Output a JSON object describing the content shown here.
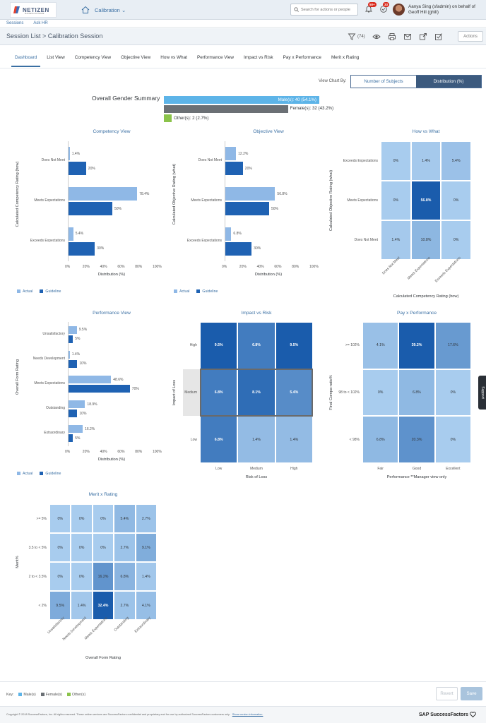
{
  "app": {
    "logo_text": "NETIZEN",
    "logo_sub": "BUSINESS SOFTWARE",
    "module": "Calibration",
    "search_placeholder": "Search for actions or people",
    "notif_count_1": "50+",
    "notif_count_2": "33",
    "user_line": "Aanya Sing (sfadmin) on behalf of Geoff Hill (ghill)"
  },
  "subnav": [
    "Sessions",
    "Ask HR"
  ],
  "titlebar": {
    "title": "Session List > Calibration Session",
    "filter_count": "(74)",
    "actions_label": "Actions"
  },
  "tabs": [
    "Dashboard",
    "List View",
    "Competency View",
    "Objective View",
    "How vs What",
    "Performance View",
    "Impact vs Risk",
    "Pay x Performance",
    "Merit x Rating"
  ],
  "view_by": {
    "label": "View Chart By:",
    "options": [
      "Number of Subjects",
      "Distribution (%)"
    ],
    "selected": "Distribution (%)"
  },
  "gender": {
    "title": "Overall Gender Summary",
    "male": "Male(s): 40 (54.1%)",
    "female": "Female(s): 32 (43.2%)",
    "other": "Other(s): 2 (2.7%)",
    "male_pct": 54.1,
    "female_pct": 43.2,
    "other_pct": 2.7
  },
  "legend": {
    "actual": "Actual",
    "guideline": "Guideline"
  },
  "colors": {
    "actual": "#8fb8e6",
    "guideline": "#1f62b3",
    "male": "#5db4e8",
    "female": "#6b7075",
    "other": "#8bc34a",
    "accent": "#3a6fa3"
  },
  "chart_data": [
    {
      "id": "competency",
      "type": "bar",
      "title": "Competency View",
      "ylabel": "Calculated Competency Rating (how)",
      "xlabel": "Distribution (%)",
      "xticks": [
        "0%",
        "20%",
        "40%",
        "60%",
        "80%",
        "100%"
      ],
      "xlim": [
        0,
        100
      ],
      "categories": [
        "Does Not Meet",
        "Meets Expectations",
        "Exceeds Expectations"
      ],
      "series": [
        {
          "name": "Actual",
          "values": [
            1.4,
            78.4,
            5.4
          ],
          "labels": [
            "1.4%",
            "78.4%",
            "5.4%"
          ]
        },
        {
          "name": "Guideline",
          "values": [
            20,
            50,
            30
          ],
          "labels": [
            "20%",
            "50%",
            "30%"
          ]
        }
      ]
    },
    {
      "id": "objective",
      "type": "bar",
      "title": "Objective View",
      "ylabel": "Calculated Objective Rating (what)",
      "xlabel": "Distribution (%)",
      "xticks": [
        "0%",
        "20%",
        "40%",
        "60%",
        "80%",
        "100%"
      ],
      "xlim": [
        0,
        100
      ],
      "categories": [
        "Does Not Meet",
        "Meets Expectations",
        "Exceeds Expectations"
      ],
      "series": [
        {
          "name": "Actual",
          "values": [
            12.2,
            56.8,
            6.8
          ],
          "labels": [
            "12.2%",
            "56.8%",
            "6.8%"
          ]
        },
        {
          "name": "Guideline",
          "values": [
            20,
            50,
            30
          ],
          "labels": [
            "20%",
            "50%",
            "30%"
          ]
        }
      ]
    },
    {
      "id": "how_vs_what",
      "type": "heatmap",
      "title": "How vs What",
      "ylabel": "Calculated Objective Rating (what)",
      "xlabel": "Calculated Competency Rating (how)",
      "rows": [
        "Exceeds Expectations",
        "Meets Expectations",
        "Does Not Meet"
      ],
      "cols": [
        "Does Not Meet",
        "Meets Expectations",
        "Exceeds Expectations"
      ],
      "values": [
        [
          0,
          1.4,
          5.4
        ],
        [
          0,
          56.8,
          0
        ],
        [
          1.4,
          10.8,
          0
        ]
      ],
      "labels": [
        [
          "0%",
          "1.4%",
          "5.4%"
        ],
        [
          "0%",
          "56.8%",
          "0%"
        ],
        [
          "1.4%",
          "10.8%",
          "0%"
        ]
      ]
    },
    {
      "id": "performance",
      "type": "bar",
      "title": "Performance View",
      "ylabel": "Overall Form Rating",
      "xlabel": "Distribution (%)",
      "xticks": [
        "0%",
        "20%",
        "40%",
        "60%",
        "80%",
        "100%"
      ],
      "xlim": [
        0,
        100
      ],
      "categories": [
        "Unsatisfactory",
        "Needs Development",
        "Meets Expectations",
        "Outstanding",
        "Extraordinary"
      ],
      "series": [
        {
          "name": "Actual",
          "values": [
            9.5,
            1.4,
            48.6,
            18.9,
            16.2
          ],
          "labels": [
            "9.5%",
            "1.4%",
            "48.6%",
            "18.9%",
            "16.2%"
          ]
        },
        {
          "name": "Guideline",
          "values": [
            5,
            10,
            70,
            10,
            5
          ],
          "labels": [
            "5%",
            "10%",
            "70%",
            "10%",
            "5%"
          ]
        }
      ]
    },
    {
      "id": "impact_vs_risk",
      "type": "heatmap",
      "title": "Impact vs Risk",
      "ylabel": "Impact of Loss",
      "xlabel": "Risk of Loss",
      "rows": [
        "High",
        "Medium",
        "Low"
      ],
      "cols": [
        "Low",
        "Medium",
        "High"
      ],
      "values": [
        [
          9.5,
          6.8,
          9.5
        ],
        [
          6.8,
          8.1,
          5.4
        ],
        [
          6.8,
          1.4,
          1.4
        ]
      ],
      "labels": [
        [
          "9.5%",
          "6.8%",
          "9.5%"
        ],
        [
          "6.8%",
          "8.1%",
          "5.4%"
        ],
        [
          "6.8%",
          "1.4%",
          "1.4%"
        ]
      ]
    },
    {
      "id": "pay_x_performance",
      "type": "heatmap",
      "title": "Pay x Performance",
      "ylabel": "Final Compa-ratio%",
      "xlabel": "Performance **Manager view only",
      "rows": [
        ">= 102%",
        "98 to < 102%",
        "< 98%"
      ],
      "cols": [
        "Fair",
        "Good",
        "Excellent"
      ],
      "values": [
        [
          4.1,
          39.2,
          17.6
        ],
        [
          0,
          6.8,
          0
        ],
        [
          6.8,
          20.3,
          0
        ]
      ],
      "labels": [
        [
          "4.1%",
          "39.2%",
          "17.6%"
        ],
        [
          "0%",
          "6.8%",
          "0%"
        ],
        [
          "6.8%",
          "20.3%",
          "0%"
        ]
      ]
    },
    {
      "id": "merit_x_rating",
      "type": "heatmap",
      "title": "Merit x Rating",
      "ylabel": "Merit%",
      "xlabel": "Overall Form Rating",
      "rows": [
        ">= 5%",
        "3.5 to < 5%",
        "2 to < 3.5%",
        "< 2%"
      ],
      "cols": [
        "Unsatisfactory",
        "Needs Development",
        "Meets Expectations",
        "Outstanding",
        "Extraordinary"
      ],
      "values": [
        [
          0,
          0,
          0,
          5.4,
          2.7
        ],
        [
          0,
          0,
          0,
          2.7,
          9.1
        ],
        [
          0,
          0,
          16.2,
          6.8,
          1.4
        ],
        [
          9.5,
          1.4,
          32.4,
          2.7,
          4.1
        ]
      ],
      "labels": [
        [
          "0%",
          "0%",
          "0%",
          "5.4%",
          "2.7%"
        ],
        [
          "0%",
          "0%",
          "0%",
          "2.7%",
          "9.1%"
        ],
        [
          "0%",
          "0%",
          "16.2%",
          "6.8%",
          "1.4%"
        ],
        [
          "9.5%",
          "1.4%",
          "32.4%",
          "2.7%",
          "4.1%"
        ]
      ]
    }
  ],
  "support_label": "Support",
  "footer": {
    "key_label": "Key:",
    "key_items": [
      "Male(s)",
      "Female(s)",
      "Other(s)"
    ],
    "revert": "Revert",
    "save": "Save",
    "copyright": "Copyright © 2018 SuccessFactors, Inc. All rights reserved. These online services are SuccessFactors confidential and proprietary and for use by authorized SuccessFactors customers only.",
    "version_link": "Show version information.",
    "brand": "SAP SuccessFactors"
  }
}
